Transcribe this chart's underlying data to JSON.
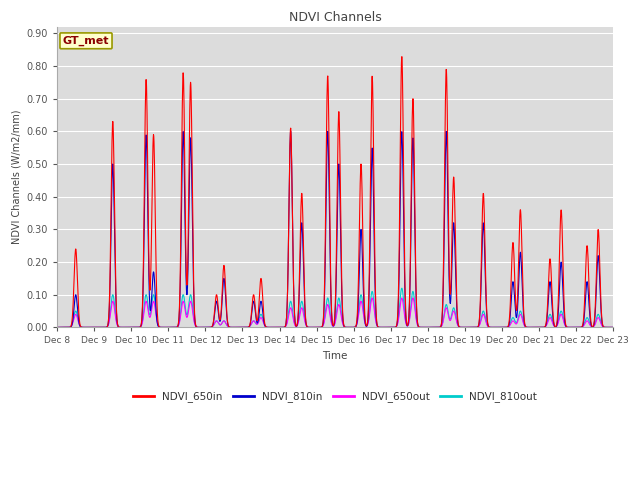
{
  "title": "NDVI Channels",
  "ylabel": "NDVI Channels (W/m2/mm)",
  "xlabel": "Time",
  "annotation": "GT_met",
  "ylim": [
    0.0,
    0.92
  ],
  "yticks": [
    0.0,
    0.1,
    0.2,
    0.3,
    0.4,
    0.5,
    0.6,
    0.7,
    0.8,
    0.9
  ],
  "xtick_labels": [
    "Dec 8",
    "Dec 9",
    "Dec 10",
    "Dec 11",
    "Dec 12",
    "Dec 13",
    "Dec 14",
    "Dec 15",
    "Dec 16",
    "Dec 17",
    "Dec 18",
    "Dec 19",
    "Dec 20",
    "Dec 21",
    "Dec 22",
    "Dec 23"
  ],
  "line_colors": {
    "NDVI_650in": "#FF0000",
    "NDVI_810in": "#0000CC",
    "NDVI_650out": "#FF00FF",
    "NDVI_810out": "#00CCCC"
  },
  "bg_color": "#DCDCDC",
  "grid_color": "#FFFFFF",
  "fig_bg": "#FFFFFF",
  "peaks": {
    "days": [
      8.5,
      9.5,
      10.4,
      10.6,
      11.4,
      11.6,
      12.3,
      12.5,
      13.3,
      13.5,
      14.3,
      14.6,
      15.3,
      15.6,
      16.2,
      16.5,
      17.3,
      17.6,
      18.5,
      18.7,
      19.5,
      20.3,
      20.5,
      21.3,
      21.6,
      22.3,
      22.6
    ],
    "r650in": [
      0.24,
      0.63,
      0.76,
      0.59,
      0.78,
      0.75,
      0.1,
      0.19,
      0.1,
      0.15,
      0.61,
      0.41,
      0.77,
      0.66,
      0.5,
      0.77,
      0.83,
      0.7,
      0.79,
      0.46,
      0.41,
      0.26,
      0.36,
      0.21,
      0.36,
      0.25,
      0.3
    ],
    "r810in": [
      0.1,
      0.5,
      0.59,
      0.17,
      0.6,
      0.58,
      0.08,
      0.15,
      0.08,
      0.08,
      0.6,
      0.32,
      0.6,
      0.5,
      0.3,
      0.55,
      0.6,
      0.58,
      0.6,
      0.32,
      0.32,
      0.14,
      0.23,
      0.14,
      0.2,
      0.14,
      0.22
    ],
    "r650out": [
      0.04,
      0.08,
      0.08,
      0.08,
      0.08,
      0.08,
      0.02,
      0.02,
      0.02,
      0.03,
      0.06,
      0.06,
      0.07,
      0.07,
      0.08,
      0.09,
      0.09,
      0.09,
      0.06,
      0.05,
      0.04,
      0.02,
      0.04,
      0.03,
      0.04,
      0.02,
      0.03
    ],
    "r810out": [
      0.05,
      0.1,
      0.1,
      0.1,
      0.1,
      0.1,
      0.02,
      0.02,
      0.02,
      0.04,
      0.08,
      0.08,
      0.09,
      0.09,
      0.1,
      0.11,
      0.12,
      0.11,
      0.07,
      0.06,
      0.05,
      0.03,
      0.05,
      0.04,
      0.05,
      0.03,
      0.04
    ]
  }
}
